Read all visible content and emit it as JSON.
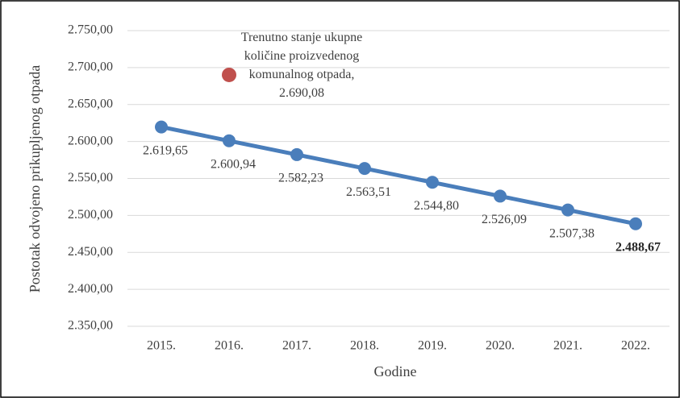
{
  "chart_data": {
    "type": "line",
    "y_label": "Postotak odvojeno prikupljenog otpada",
    "x_label": "Godine",
    "categories": [
      "2015.",
      "2016.",
      "2017.",
      "2018.",
      "2019.",
      "2020.",
      "2021.",
      "2022."
    ],
    "series": [
      {
        "color": "#4a7ebb",
        "values": [
          2619.65,
          2600.94,
          2582.23,
          2563.51,
          2544.8,
          2526.09,
          2507.38,
          2488.67
        ],
        "value_labels": [
          "2.619,65",
          "2.600,94",
          "2.582,23",
          "2.563,51",
          "2.544,80",
          "2.526,09",
          "2.507,38",
          "2.488,67"
        ]
      },
      {
        "type": "scatter",
        "color": "#c0504d",
        "values": [
          null,
          2690.08,
          null,
          null,
          null,
          null,
          null,
          null
        ],
        "value_labels": [
          null,
          "Trenutno stanje ukupne količine proizvedenog komunalnog otpada, 2.690,08",
          null,
          null,
          null,
          null,
          null,
          null
        ]
      }
    ],
    "ylim": [
      2350,
      2750
    ],
    "yticks": [
      {
        "value": 2350,
        "label": "2.350,00"
      },
      {
        "value": 2400,
        "label": "2.400,00"
      },
      {
        "value": 2450,
        "label": "2.450,00"
      },
      {
        "value": 2500,
        "label": "2.500,00"
      },
      {
        "value": 2550,
        "label": "2.550,00"
      },
      {
        "value": 2600,
        "label": "2.600,00"
      },
      {
        "value": 2650,
        "label": "2.650,00"
      },
      {
        "value": 2700,
        "label": "2.700,00"
      },
      {
        "value": 2750,
        "label": "2.750,00"
      }
    ],
    "grid": true
  }
}
